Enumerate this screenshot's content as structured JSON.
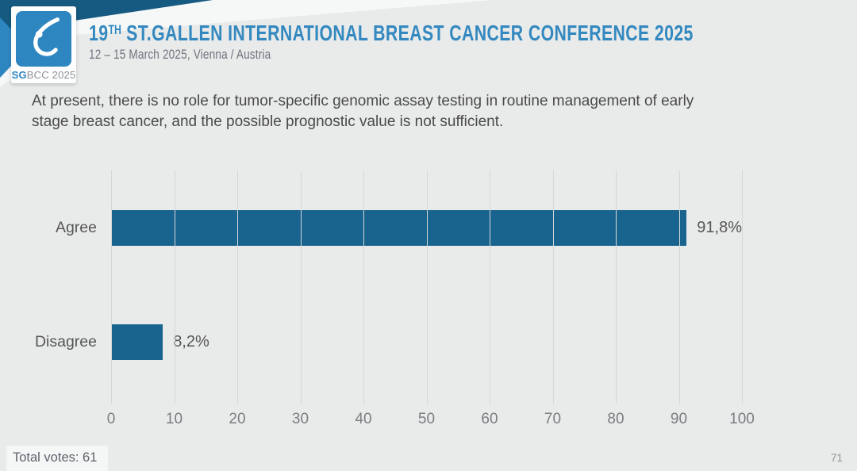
{
  "header": {
    "logo": {
      "sg": "SG",
      "rest": "BCC 2025",
      "icon": "sgbcc-breast-icon"
    },
    "title_prefix": "19",
    "title_sup": "TH",
    "title_rest": " ST.GALLEN INTERNATIONAL BREAST CANCER CONFERENCE 2025",
    "subtitle": "12 – 15 March 2025, Vienna / Austria"
  },
  "question": {
    "line1": "At present, there is no role for tumor-specific genomic assay testing in routine management of early",
    "line2": "stage breast cancer, and the possible prognostic value is not sufficient."
  },
  "chart_data": {
    "type": "bar",
    "orientation": "horizontal",
    "title": "",
    "categories": [
      "Agree",
      "Disagree"
    ],
    "values": [
      91.8,
      8.2
    ],
    "value_labels": [
      "91,8%",
      "8,2%"
    ],
    "xlim": [
      0,
      100
    ],
    "xticks": [
      0,
      10,
      20,
      30,
      40,
      50,
      60,
      70,
      80,
      90,
      100
    ],
    "grid": true,
    "legend": "none",
    "bar_color": "#19648E"
  },
  "footer": {
    "total_votes": "Total votes: 61",
    "page_number": "71"
  },
  "colors": {
    "background": "#E9EAEA",
    "accent_blue": "#2E86C1",
    "title_blue": "#3389BF",
    "navy_wedge": "#165A81",
    "bar_blue": "#19648E",
    "text_gray": "#4A4A4A"
  }
}
